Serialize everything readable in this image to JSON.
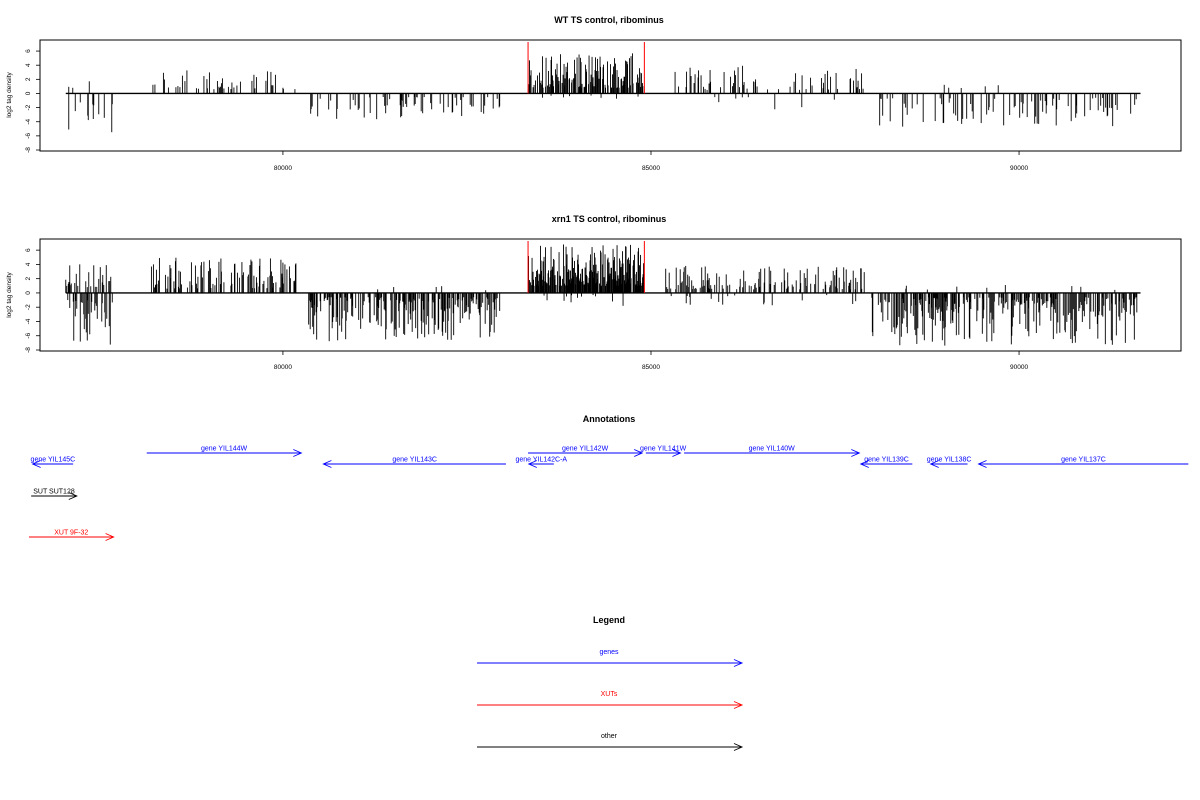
{
  "chart_data": [
    {
      "type": "bar",
      "title": "WT TS control, ribominus",
      "ylabel": "log2 tag density",
      "xlim": [
        76700,
        92200
      ],
      "ylim": [
        -8,
        7
      ],
      "yticks": [
        6,
        4,
        2,
        0,
        -2,
        -4,
        -6,
        -8
      ],
      "xticks": [
        80000,
        85000,
        90000
      ],
      "highlight_x": [
        83330,
        84910
      ],
      "highlight_color": "#ff0000",
      "bar_color": "#000000",
      "baseline_range": [
        77050,
        91650
      ],
      "segments": [
        {
          "range": [
            77050,
            77700
          ],
          "sign": -1,
          "density": 0.18,
          "min": 1.0,
          "max": 6.0
        },
        {
          "range": [
            77050,
            77700
          ],
          "sign": 1,
          "density": 0.02,
          "min": 0.5,
          "max": 3.2
        },
        {
          "range": [
            78200,
            79900
          ],
          "sign": 1,
          "density": 0.14,
          "min": 0.6,
          "max": 3.3
        },
        {
          "range": [
            80000,
            80200
          ],
          "sign": 1,
          "density": 0.05,
          "min": 0.5,
          "max": 1.2
        },
        {
          "range": [
            80350,
            82950
          ],
          "sign": -1,
          "density": 0.16,
          "min": 0.5,
          "max": 3.8
        },
        {
          "range": [
            83330,
            84910
          ],
          "sign": 1,
          "density": 0.55,
          "min": 0.8,
          "max": 5.8
        },
        {
          "range": [
            83330,
            84910
          ],
          "sign": -1,
          "density": 0.03,
          "min": 0.3,
          "max": 0.8
        },
        {
          "range": [
            85300,
            87900
          ],
          "sign": 1,
          "density": 0.14,
          "min": 0.5,
          "max": 4.0
        },
        {
          "range": [
            85500,
            87500
          ],
          "sign": -1,
          "density": 0.02,
          "min": 0.5,
          "max": 3.0
        },
        {
          "range": [
            88100,
            91600
          ],
          "sign": -1,
          "density": 0.17,
          "min": 0.6,
          "max": 4.8
        },
        {
          "range": [
            88800,
            90400
          ],
          "sign": 1,
          "density": 0.02,
          "min": 0.5,
          "max": 1.5
        }
      ]
    },
    {
      "type": "bar",
      "title": "xrn1 TS control, ribominus",
      "ylabel": "log2 tag density",
      "xlim": [
        76700,
        92200
      ],
      "ylim": [
        -8,
        7
      ],
      "yticks": [
        6,
        4,
        2,
        0,
        -2,
        -4,
        -6,
        -8
      ],
      "xticks": [
        80000,
        85000,
        90000
      ],
      "highlight_x": [
        83330,
        84910
      ],
      "highlight_color": "#ff0000",
      "bar_color": "#000000",
      "baseline_range": [
        77050,
        91650
      ],
      "segments": [
        {
          "range": [
            77050,
            77700
          ],
          "sign": 1,
          "density": 0.3,
          "min": 0.8,
          "max": 4.2
        },
        {
          "range": [
            77050,
            77700
          ],
          "sign": -1,
          "density": 0.32,
          "min": 1.0,
          "max": 7.5
        },
        {
          "range": [
            78200,
            80200
          ],
          "sign": 1,
          "density": 0.3,
          "min": 0.6,
          "max": 5.0
        },
        {
          "range": [
            80350,
            82950
          ],
          "sign": -1,
          "density": 0.45,
          "min": 0.6,
          "max": 6.8
        },
        {
          "range": [
            80350,
            82950
          ],
          "sign": 1,
          "density": 0.02,
          "min": 0.3,
          "max": 1.0
        },
        {
          "range": [
            83330,
            84910
          ],
          "sign": 1,
          "density": 0.85,
          "min": 1.0,
          "max": 6.8
        },
        {
          "range": [
            83330,
            84910
          ],
          "sign": -1,
          "density": 0.05,
          "min": 0.3,
          "max": 2.0
        },
        {
          "range": [
            85200,
            87900
          ],
          "sign": 1,
          "density": 0.3,
          "min": 0.5,
          "max": 3.8
        },
        {
          "range": [
            85200,
            87900
          ],
          "sign": -1,
          "density": 0.03,
          "min": 0.3,
          "max": 1.8
        },
        {
          "range": [
            88000,
            91600
          ],
          "sign": -1,
          "density": 0.42,
          "min": 0.6,
          "max": 7.5
        },
        {
          "range": [
            88000,
            91600
          ],
          "sign": 1,
          "density": 0.02,
          "min": 0.3,
          "max": 1.2
        }
      ]
    }
  ],
  "annotations": {
    "title": "Annotations",
    "items": [
      {
        "label": "gene YIL145C",
        "type": "genes",
        "start": 77150,
        "end": 76600,
        "row": 1,
        "dir": "left"
      },
      {
        "label": "gene YIL144W",
        "type": "genes",
        "start": 78150,
        "end": 80250,
        "row": 0,
        "dir": "right"
      },
      {
        "label": "gene YIL143C",
        "type": "genes",
        "start": 83030,
        "end": 80550,
        "row": 1,
        "dir": "left"
      },
      {
        "label": "gene YIL142C-A",
        "type": "genes",
        "start": 83680,
        "end": 83340,
        "row": 1,
        "dir": "left"
      },
      {
        "label": "gene YIL142W",
        "type": "genes",
        "start": 83330,
        "end": 84880,
        "row": 0,
        "dir": "right"
      },
      {
        "label": "gene YIL141W",
        "type": "genes",
        "start": 84930,
        "end": 85400,
        "row": 0,
        "dir": "right"
      },
      {
        "label": "gene YIL140W",
        "type": "genes",
        "start": 85450,
        "end": 87830,
        "row": 0,
        "dir": "right"
      },
      {
        "label": "gene YIL139C",
        "type": "genes",
        "start": 88550,
        "end": 87850,
        "row": 1,
        "dir": "left"
      },
      {
        "label": "gene YIL138C",
        "type": "genes",
        "start": 89300,
        "end": 88800,
        "row": 1,
        "dir": "left"
      },
      {
        "label": "gene YIL137C",
        "type": "genes",
        "start": 92300,
        "end": 89450,
        "row": 1,
        "dir": "left"
      },
      {
        "label": "SUT SUT128",
        "type": "other",
        "start": 76580,
        "end": 77200,
        "row": 2,
        "dir": "right"
      },
      {
        "label": "XUT 9F-32",
        "type": "XUTs",
        "start": 76550,
        "end": 77700,
        "row": 3,
        "dir": "right"
      }
    ]
  },
  "legend": {
    "title": "Legend",
    "items": [
      {
        "label": "genes",
        "color": "#0000ff"
      },
      {
        "label": "XUTs",
        "color": "#ff0000"
      },
      {
        "label": "other",
        "color": "#000000"
      }
    ]
  },
  "colors": {
    "genes": "#0000ff",
    "XUTs": "#ff0000",
    "other": "#000000"
  }
}
